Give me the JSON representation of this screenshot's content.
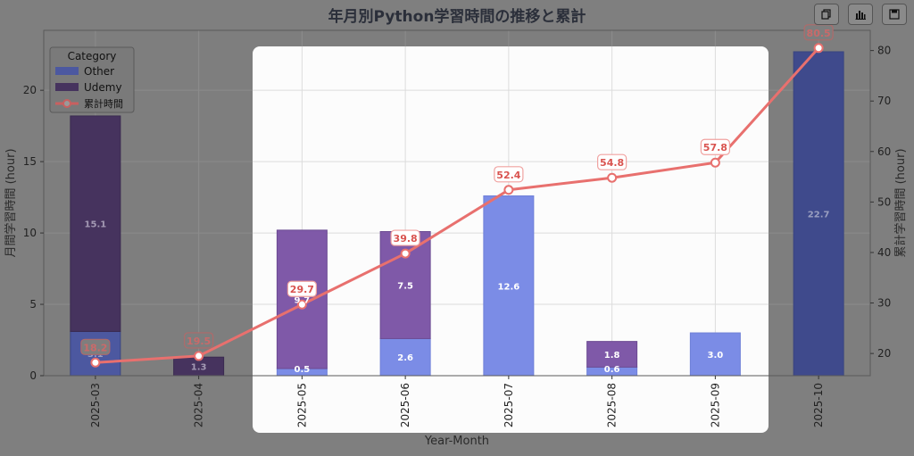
{
  "toolbar": {
    "buttons": [
      {
        "name": "copy-icon"
      },
      {
        "name": "bar-chart-icon"
      },
      {
        "name": "save-icon"
      }
    ]
  },
  "chart_data": {
    "type": "bar",
    "title": "年月別Python学習時間の推移と累計",
    "xlabel": "Year-Month",
    "ylabel": "月間学習時間 (hour)",
    "y2label": "累計学習時間 (hour)",
    "categories": [
      "2025-03",
      "2025-04",
      "2025-05",
      "2025-06",
      "2025-07",
      "2025-08",
      "2025-09",
      "2025-10"
    ],
    "ylim": [
      0,
      24.2
    ],
    "y2lim": [
      15.6,
      84
    ],
    "yticks": [
      0,
      5,
      10,
      15,
      20
    ],
    "y2ticks": [
      20,
      30,
      40,
      50,
      60,
      70,
      80
    ],
    "grid": true,
    "legend_title": "Category",
    "legend_position": "top-left",
    "series": [
      {
        "name": "Other",
        "type": "bar",
        "color": "#7b8ce6",
        "values": [
          3.1,
          0,
          0.5,
          2.6,
          12.6,
          0.6,
          3.0,
          22.7
        ],
        "labels": [
          "3.1",
          "",
          "0.5",
          "2.6",
          "12.6",
          "0.6",
          "3.0",
          "22.7"
        ]
      },
      {
        "name": "Udemy",
        "type": "bar",
        "color": "#7f59a8",
        "values": [
          15.1,
          1.3,
          9.7,
          7.5,
          0,
          1.8,
          0,
          0
        ],
        "labels": [
          "15.1",
          "1.3",
          "9.7",
          "7.5",
          "",
          "1.8",
          "",
          ""
        ]
      },
      {
        "name": "累計時間",
        "type": "line",
        "axis": "right",
        "color": "#e8706e",
        "values": [
          18.2,
          19.5,
          29.7,
          39.8,
          52.4,
          54.8,
          57.8,
          80.5
        ],
        "labels": [
          "18.2",
          "19.5",
          "29.7",
          "39.8",
          "52.4",
          "54.8",
          "57.8",
          "80.5"
        ]
      }
    ]
  }
}
